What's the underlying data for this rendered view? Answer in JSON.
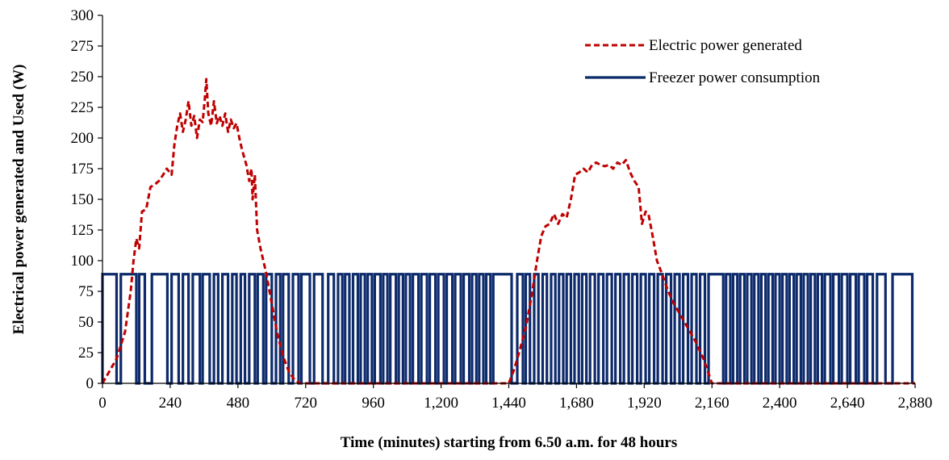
{
  "chart_data": {
    "type": "line",
    "title": "",
    "xlabel": "Time (minutes) starting from 6.50 a.m. for 48 hours",
    "ylabel": "Electrical  power  generated  and  Used  (W)",
    "xlim": [
      0,
      2880
    ],
    "ylim": [
      0,
      300
    ],
    "x_ticks": [
      0,
      240,
      480,
      720,
      960,
      1200,
      1440,
      1680,
      1920,
      2160,
      2400,
      2640,
      2880
    ],
    "x_tick_labels": [
      "0",
      "240",
      "480",
      "720",
      "960",
      "1,200",
      "1,440",
      "1,680",
      "1,920",
      "2,160",
      "2,400",
      "2,640",
      "2,880"
    ],
    "y_ticks": [
      0,
      25,
      50,
      75,
      100,
      125,
      150,
      175,
      200,
      225,
      250,
      275,
      300
    ],
    "y_tick_labels": [
      "0",
      "25",
      "50",
      "75",
      "100",
      "125",
      "150",
      "175",
      "200",
      "225",
      "250",
      "275",
      "300"
    ],
    "grid": false,
    "legend_position": "top-right",
    "series": [
      {
        "name": "Electric power generated",
        "color": "#c00000",
        "style": "dashed",
        "points": [
          [
            0,
            0
          ],
          [
            20,
            8
          ],
          [
            50,
            20
          ],
          [
            80,
            42
          ],
          [
            100,
            75
          ],
          [
            110,
            100
          ],
          [
            120,
            118
          ],
          [
            130,
            110
          ],
          [
            140,
            140
          ],
          [
            155,
            142
          ],
          [
            170,
            160
          ],
          [
            185,
            162
          ],
          [
            200,
            165
          ],
          [
            215,
            170
          ],
          [
            228,
            175
          ],
          [
            245,
            170
          ],
          [
            255,
            195
          ],
          [
            265,
            210
          ],
          [
            275,
            220
          ],
          [
            285,
            205
          ],
          [
            295,
            215
          ],
          [
            305,
            230
          ],
          [
            315,
            210
          ],
          [
            325,
            218
          ],
          [
            335,
            200
          ],
          [
            345,
            215
          ],
          [
            355,
            213
          ],
          [
            362,
            230
          ],
          [
            368,
            248
          ],
          [
            375,
            220
          ],
          [
            385,
            210
          ],
          [
            395,
            230
          ],
          [
            405,
            212
          ],
          [
            415,
            218
          ],
          [
            425,
            210
          ],
          [
            435,
            220
          ],
          [
            445,
            205
          ],
          [
            455,
            215
          ],
          [
            465,
            208
          ],
          [
            475,
            212
          ],
          [
            485,
            200
          ],
          [
            495,
            190
          ],
          [
            510,
            178
          ],
          [
            520,
            165
          ],
          [
            528,
            175
          ],
          [
            532,
            150
          ],
          [
            540,
            170
          ],
          [
            548,
            125
          ],
          [
            560,
            110
          ],
          [
            580,
            90
          ],
          [
            600,
            65
          ],
          [
            620,
            40
          ],
          [
            640,
            22
          ],
          [
            660,
            10
          ],
          [
            680,
            3
          ],
          [
            700,
            0
          ],
          [
            1440,
            0
          ],
          [
            1460,
            12
          ],
          [
            1480,
            28
          ],
          [
            1500,
            45
          ],
          [
            1520,
            70
          ],
          [
            1540,
            100
          ],
          [
            1555,
            120
          ],
          [
            1570,
            128
          ],
          [
            1585,
            130
          ],
          [
            1600,
            138
          ],
          [
            1615,
            130
          ],
          [
            1630,
            138
          ],
          [
            1645,
            135
          ],
          [
            1660,
            150
          ],
          [
            1675,
            170
          ],
          [
            1690,
            172
          ],
          [
            1705,
            175
          ],
          [
            1720,
            172
          ],
          [
            1735,
            178
          ],
          [
            1750,
            180
          ],
          [
            1765,
            178
          ],
          [
            1780,
            177
          ],
          [
            1795,
            178
          ],
          [
            1810,
            175
          ],
          [
            1825,
            180
          ],
          [
            1840,
            178
          ],
          [
            1855,
            182
          ],
          [
            1870,
            172
          ],
          [
            1885,
            165
          ],
          [
            1900,
            160
          ],
          [
            1912,
            130
          ],
          [
            1925,
            140
          ],
          [
            1935,
            138
          ],
          [
            1950,
            120
          ],
          [
            1965,
            100
          ],
          [
            1985,
            88
          ],
          [
            2005,
            75
          ],
          [
            2025,
            65
          ],
          [
            2050,
            55
          ],
          [
            2075,
            45
          ],
          [
            2100,
            35
          ],
          [
            2130,
            20
          ],
          [
            2160,
            0
          ],
          [
            2880,
            0
          ]
        ]
      },
      {
        "name": "Freezer power consumption",
        "color": "#0d2a6b",
        "style": "solid",
        "on_value": 89,
        "off_value": 0,
        "on_intervals": [
          [
            0,
            50
          ],
          [
            65,
            120
          ],
          [
            130,
            150
          ],
          [
            175,
            230
          ],
          [
            245,
            270
          ],
          [
            285,
            305
          ],
          [
            320,
            345
          ],
          [
            355,
            380
          ],
          [
            395,
            410
          ],
          [
            425,
            445
          ],
          [
            460,
            475
          ],
          [
            490,
            505
          ],
          [
            520,
            540
          ],
          [
            550,
            570
          ],
          [
            580,
            600
          ],
          [
            615,
            630
          ],
          [
            640,
            660
          ],
          [
            675,
            695
          ],
          [
            705,
            735
          ],
          [
            750,
            780
          ],
          [
            800,
            820
          ],
          [
            835,
            850
          ],
          [
            860,
            875
          ],
          [
            888,
            905
          ],
          [
            915,
            930
          ],
          [
            940,
            955
          ],
          [
            965,
            985
          ],
          [
            995,
            1010
          ],
          [
            1020,
            1040
          ],
          [
            1050,
            1065
          ],
          [
            1075,
            1090
          ],
          [
            1100,
            1120
          ],
          [
            1130,
            1150
          ],
          [
            1160,
            1180
          ],
          [
            1190,
            1210
          ],
          [
            1220,
            1240
          ],
          [
            1250,
            1270
          ],
          [
            1280,
            1300
          ],
          [
            1310,
            1325
          ],
          [
            1335,
            1350
          ],
          [
            1360,
            1375
          ],
          [
            1385,
            1450
          ],
          [
            1470,
            1490
          ],
          [
            1500,
            1515
          ],
          [
            1530,
            1545
          ],
          [
            1560,
            1575
          ],
          [
            1590,
            1605
          ],
          [
            1618,
            1633
          ],
          [
            1645,
            1660
          ],
          [
            1673,
            1688
          ],
          [
            1700,
            1715
          ],
          [
            1728,
            1745
          ],
          [
            1758,
            1775
          ],
          [
            1788,
            1805
          ],
          [
            1818,
            1835
          ],
          [
            1848,
            1865
          ],
          [
            1878,
            1895
          ],
          [
            1908,
            1925
          ],
          [
            1938,
            1955
          ],
          [
            1968,
            1985
          ],
          [
            1998,
            2015
          ],
          [
            2028,
            2045
          ],
          [
            2058,
            2075
          ],
          [
            2088,
            2105
          ],
          [
            2118,
            2135
          ],
          [
            2148,
            2200
          ],
          [
            2210,
            2225
          ],
          [
            2235,
            2250
          ],
          [
            2260,
            2275
          ],
          [
            2285,
            2300
          ],
          [
            2310,
            2325
          ],
          [
            2335,
            2350
          ],
          [
            2360,
            2375
          ],
          [
            2385,
            2400
          ],
          [
            2410,
            2425
          ],
          [
            2435,
            2450
          ],
          [
            2460,
            2475
          ],
          [
            2485,
            2500
          ],
          [
            2510,
            2525
          ],
          [
            2535,
            2550
          ],
          [
            2560,
            2580
          ],
          [
            2590,
            2610
          ],
          [
            2620,
            2640
          ],
          [
            2650,
            2670
          ],
          [
            2680,
            2700
          ],
          [
            2710,
            2730
          ],
          [
            2745,
            2775
          ],
          [
            2800,
            2870
          ]
        ]
      }
    ]
  }
}
